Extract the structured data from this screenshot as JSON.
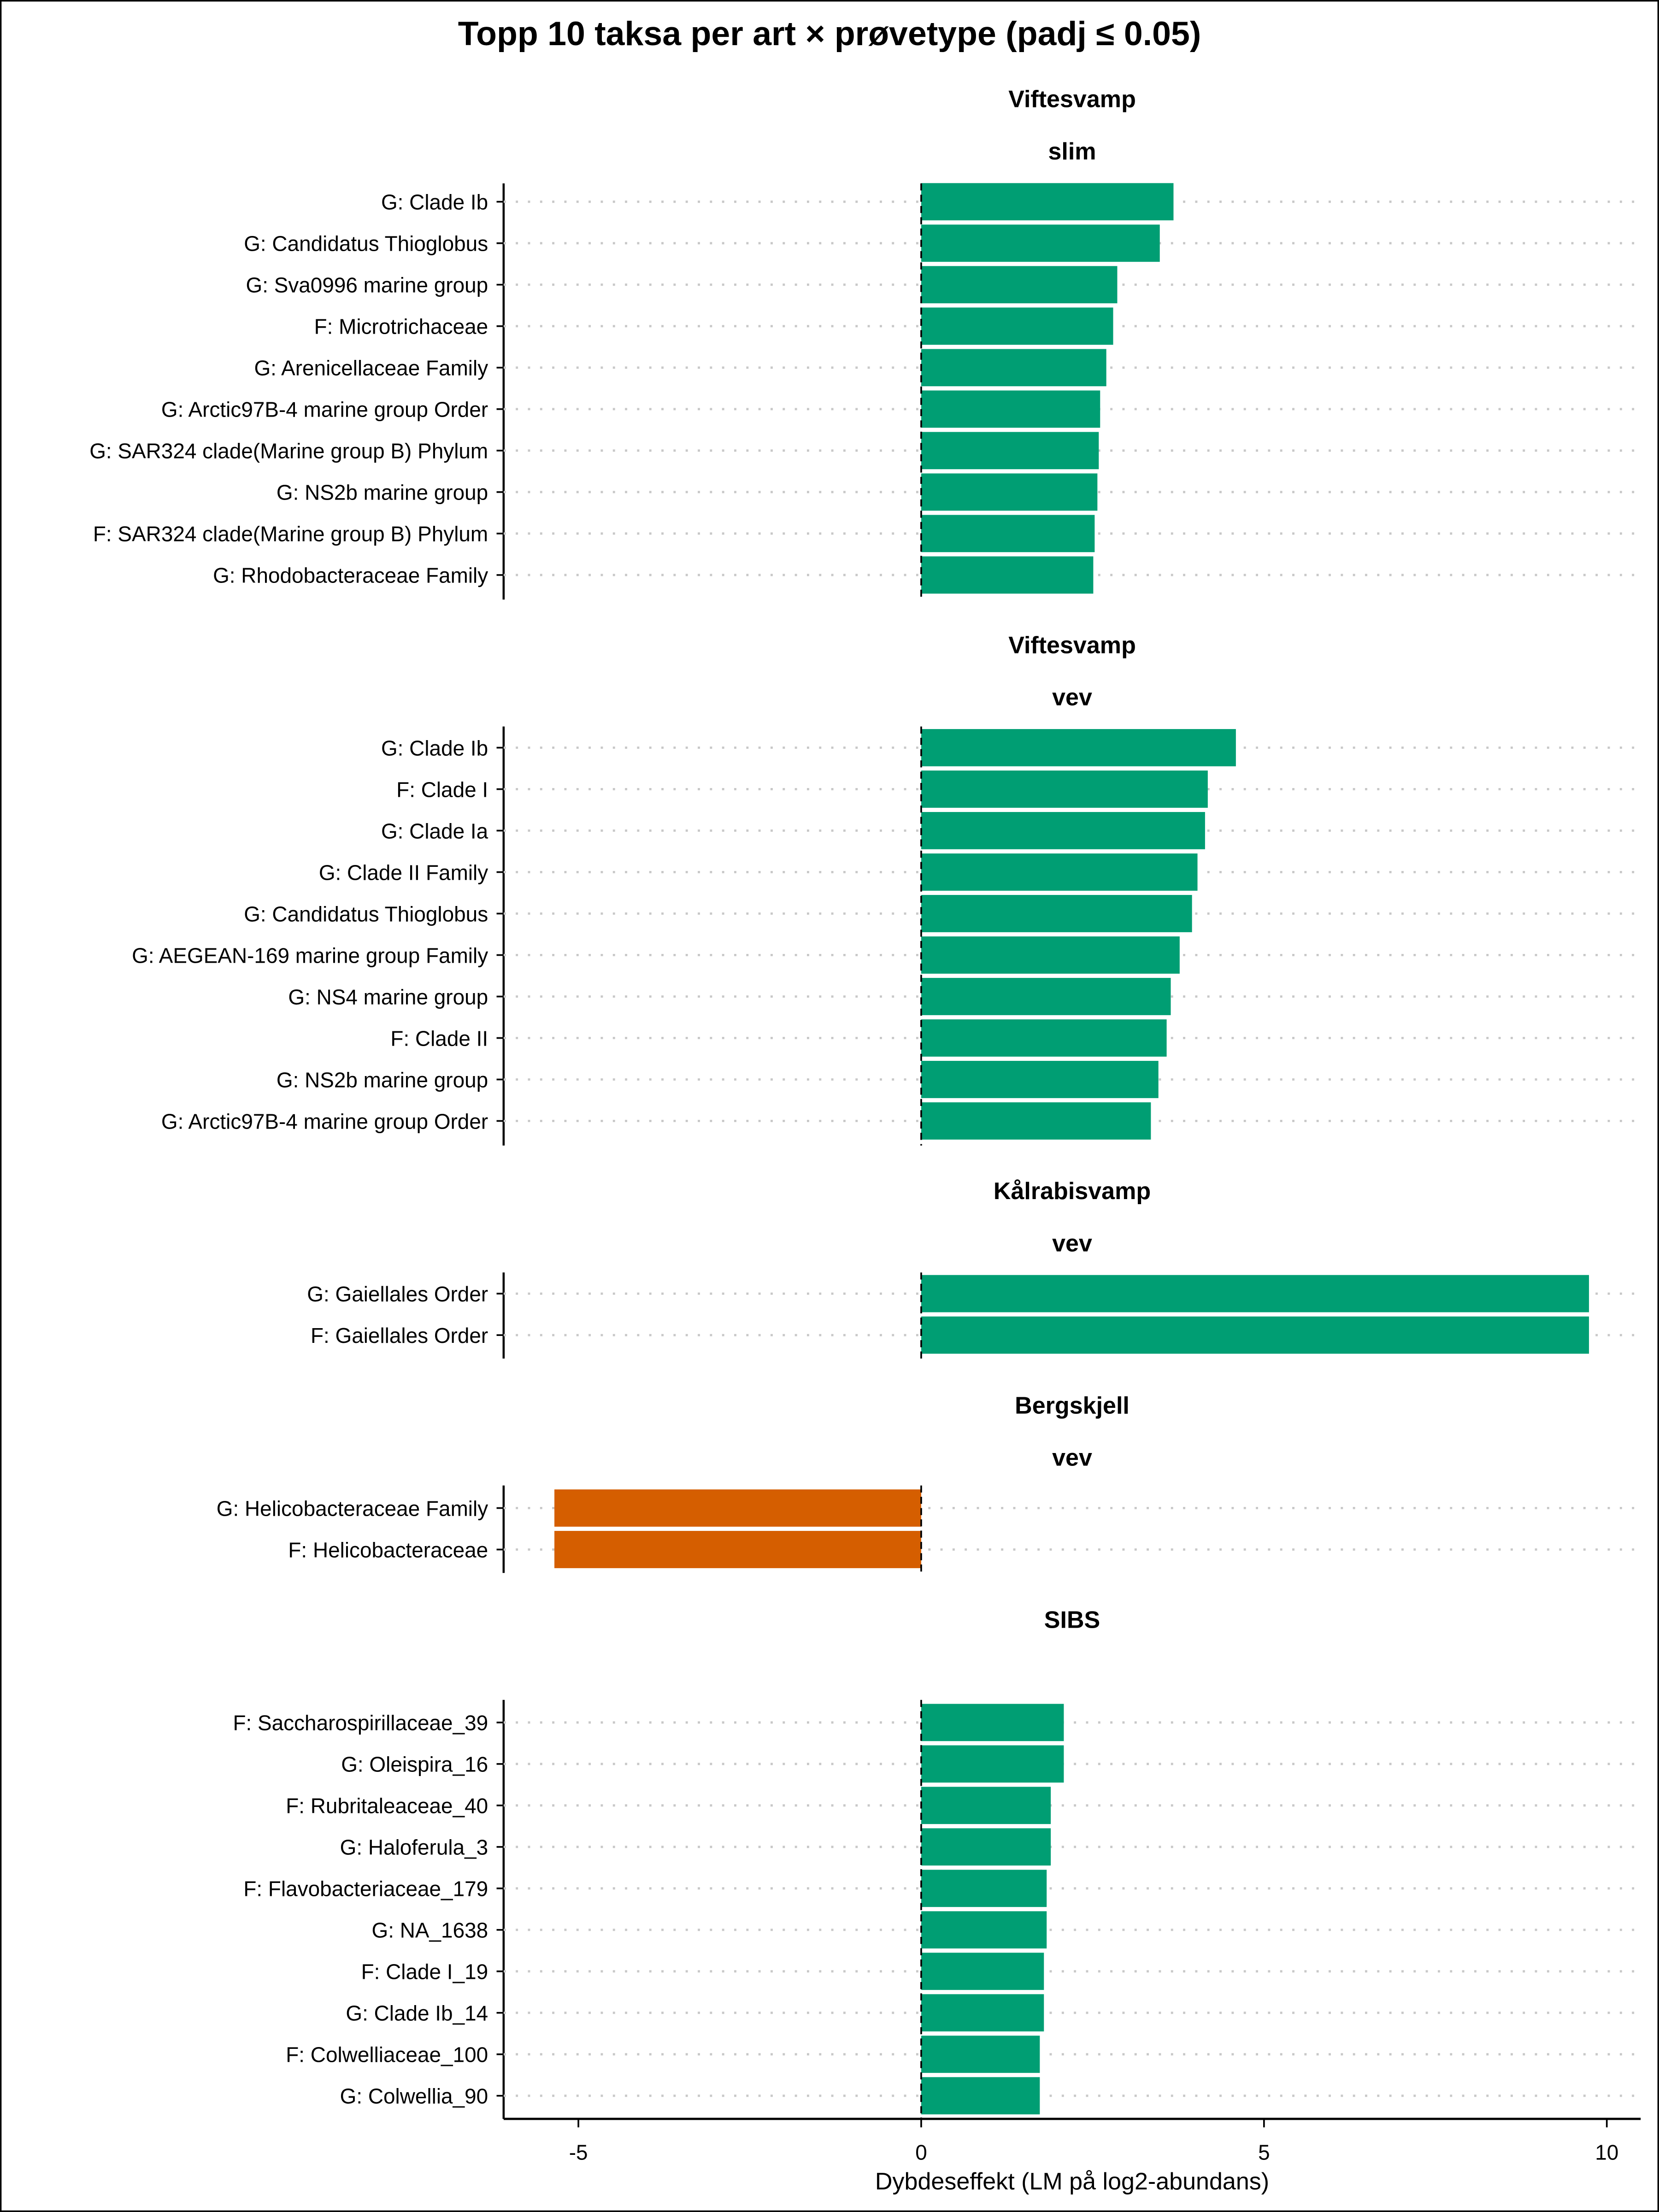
{
  "chart_data": {
    "type": "bar",
    "orientation": "horizontal",
    "title": "Topp 10 taksa per art × prøvetype (padj ≤ 0.05)",
    "xlabel": "Dybdeseffekt (LM på log2-abundans)",
    "ylabel": "",
    "xlim": [
      -6.1,
      10.5
    ],
    "xticks": [
      -5,
      0,
      5,
      10
    ],
    "xtick_labels": [
      "-5",
      "0",
      "5",
      "10"
    ],
    "grid": "horizontal dotted",
    "reference_line": 0,
    "colors": {
      "positive": "#009E73",
      "negative": "#D55E00"
    },
    "panels": [
      {
        "strips": [
          "Viftesvamp",
          "slim"
        ],
        "categories": [
          "G: Clade Ib",
          "G: Candidatus Thioglobus",
          "G: Sva0996 marine group",
          "F: Microtrichaceae",
          "G: Arenicellaceae Family",
          "G: Arctic97B-4 marine group Order",
          "G: SAR324 clade(Marine group B) Phylum",
          "G: NS2b marine group",
          "F: SAR324 clade(Marine group B) Phylum",
          "G: Rhodobacteraceae Family"
        ],
        "values": [
          3.68,
          3.48,
          2.86,
          2.8,
          2.7,
          2.61,
          2.59,
          2.57,
          2.53,
          2.51
        ]
      },
      {
        "strips": [
          "Viftesvamp",
          "vev"
        ],
        "categories": [
          "G: Clade Ib",
          "F: Clade I",
          "G: Clade Ia",
          "G: Clade II Family",
          "G: Candidatus Thioglobus",
          "G: AEGEAN-169 marine group Family",
          "G: NS4 marine group",
          "F: Clade II",
          "G: NS2b marine group",
          "G: Arctic97B-4 marine group Order"
        ],
        "values": [
          4.59,
          4.18,
          4.14,
          4.03,
          3.95,
          3.77,
          3.64,
          3.58,
          3.46,
          3.35
        ]
      },
      {
        "strips": [
          "Kålrabisvamp",
          "vev"
        ],
        "categories": [
          "G: Gaiellales Order",
          "F: Gaiellales Order"
        ],
        "values": [
          9.74,
          9.74
        ]
      },
      {
        "strips": [
          "Bergskjell",
          "vev"
        ],
        "categories": [
          "G: Helicobacteraceae Family",
          "F: Helicobacteraceae"
        ],
        "values": [
          -5.35,
          -5.35
        ]
      },
      {
        "strips": [
          "SIBS"
        ],
        "categories": [
          "F: Saccharospirillaceae_39",
          "G: Oleispira_16",
          "F: Rubritaleaceae_40",
          "G: Haloferula_3",
          "F: Flavobacteriaceae_179",
          "G: NA_1638",
          "F: Clade I_19",
          "G: Clade Ib_14",
          "F: Colwelliaceae_100",
          "G: Colwellia_90"
        ],
        "values": [
          2.08,
          2.08,
          1.89,
          1.89,
          1.83,
          1.83,
          1.79,
          1.79,
          1.73,
          1.73
        ]
      }
    ]
  }
}
